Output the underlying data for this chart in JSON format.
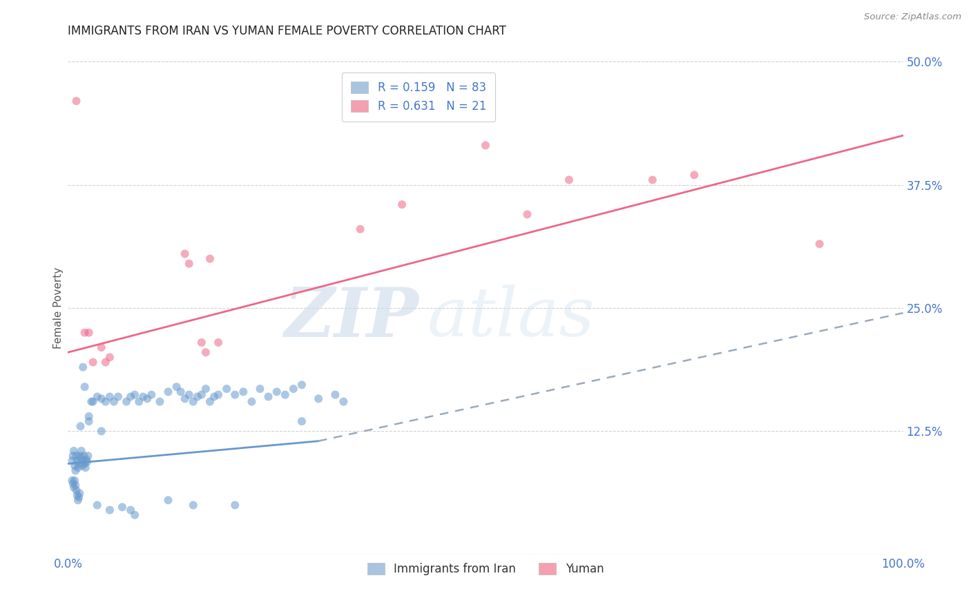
{
  "title": "IMMIGRANTS FROM IRAN VS YUMAN FEMALE POVERTY CORRELATION CHART",
  "source": "Source: ZipAtlas.com",
  "ylabel": "Female Poverty",
  "xlim": [
    0,
    1.0
  ],
  "ylim": [
    0,
    0.5
  ],
  "xticks": [
    0.0,
    0.5,
    1.0
  ],
  "xticklabels": [
    "0.0%",
    "",
    "100.0%"
  ],
  "yticks": [
    0.0,
    0.125,
    0.25,
    0.375,
    0.5
  ],
  "yticklabels": [
    "",
    "12.5%",
    "25.0%",
    "37.5%",
    "50.0%"
  ],
  "blue_scatter": [
    [
      0.005,
      0.095
    ],
    [
      0.006,
      0.1
    ],
    [
      0.007,
      0.105
    ],
    [
      0.008,
      0.09
    ],
    [
      0.009,
      0.085
    ],
    [
      0.01,
      0.1
    ],
    [
      0.011,
      0.095
    ],
    [
      0.012,
      0.088
    ],
    [
      0.013,
      0.092
    ],
    [
      0.014,
      0.1
    ],
    [
      0.015,
      0.098
    ],
    [
      0.016,
      0.105
    ],
    [
      0.017,
      0.09
    ],
    [
      0.018,
      0.095
    ],
    [
      0.019,
      0.1
    ],
    [
      0.02,
      0.092
    ],
    [
      0.021,
      0.088
    ],
    [
      0.022,
      0.096
    ],
    [
      0.023,
      0.094
    ],
    [
      0.024,
      0.1
    ],
    [
      0.005,
      0.075
    ],
    [
      0.006,
      0.072
    ],
    [
      0.007,
      0.068
    ],
    [
      0.008,
      0.075
    ],
    [
      0.009,
      0.07
    ],
    [
      0.01,
      0.065
    ],
    [
      0.011,
      0.06
    ],
    [
      0.012,
      0.055
    ],
    [
      0.013,
      0.058
    ],
    [
      0.014,
      0.062
    ],
    [
      0.015,
      0.13
    ],
    [
      0.018,
      0.19
    ],
    [
      0.02,
      0.17
    ],
    [
      0.025,
      0.14
    ],
    [
      0.028,
      0.155
    ],
    [
      0.03,
      0.155
    ],
    [
      0.035,
      0.16
    ],
    [
      0.04,
      0.158
    ],
    [
      0.045,
      0.155
    ],
    [
      0.05,
      0.16
    ],
    [
      0.055,
      0.155
    ],
    [
      0.06,
      0.16
    ],
    [
      0.07,
      0.155
    ],
    [
      0.075,
      0.16
    ],
    [
      0.08,
      0.162
    ],
    [
      0.085,
      0.155
    ],
    [
      0.09,
      0.16
    ],
    [
      0.095,
      0.158
    ],
    [
      0.1,
      0.162
    ],
    [
      0.11,
      0.155
    ],
    [
      0.12,
      0.165
    ],
    [
      0.13,
      0.17
    ],
    [
      0.135,
      0.165
    ],
    [
      0.14,
      0.158
    ],
    [
      0.145,
      0.162
    ],
    [
      0.15,
      0.155
    ],
    [
      0.155,
      0.16
    ],
    [
      0.16,
      0.162
    ],
    [
      0.165,
      0.168
    ],
    [
      0.17,
      0.155
    ],
    [
      0.175,
      0.16
    ],
    [
      0.18,
      0.162
    ],
    [
      0.19,
      0.168
    ],
    [
      0.2,
      0.162
    ],
    [
      0.21,
      0.165
    ],
    [
      0.22,
      0.155
    ],
    [
      0.23,
      0.168
    ],
    [
      0.24,
      0.16
    ],
    [
      0.25,
      0.165
    ],
    [
      0.26,
      0.162
    ],
    [
      0.27,
      0.168
    ],
    [
      0.28,
      0.172
    ],
    [
      0.3,
      0.158
    ],
    [
      0.32,
      0.162
    ],
    [
      0.025,
      0.135
    ],
    [
      0.04,
      0.125
    ],
    [
      0.035,
      0.05
    ],
    [
      0.05,
      0.045
    ],
    [
      0.065,
      0.048
    ],
    [
      0.075,
      0.045
    ],
    [
      0.08,
      0.04
    ],
    [
      0.12,
      0.055
    ],
    [
      0.15,
      0.05
    ],
    [
      0.2,
      0.05
    ],
    [
      0.28,
      0.135
    ],
    [
      0.33,
      0.155
    ]
  ],
  "pink_scatter": [
    [
      0.01,
      0.46
    ],
    [
      0.02,
      0.225
    ],
    [
      0.025,
      0.225
    ],
    [
      0.03,
      0.195
    ],
    [
      0.04,
      0.21
    ],
    [
      0.045,
      0.195
    ],
    [
      0.05,
      0.2
    ],
    [
      0.14,
      0.305
    ],
    [
      0.145,
      0.295
    ],
    [
      0.16,
      0.215
    ],
    [
      0.165,
      0.205
    ],
    [
      0.17,
      0.3
    ],
    [
      0.18,
      0.215
    ],
    [
      0.35,
      0.33
    ],
    [
      0.4,
      0.355
    ],
    [
      0.5,
      0.415
    ],
    [
      0.55,
      0.345
    ],
    [
      0.6,
      0.38
    ],
    [
      0.7,
      0.38
    ],
    [
      0.75,
      0.385
    ],
    [
      0.9,
      0.315
    ]
  ],
  "blue_solid_line": [
    [
      0.0,
      0.092
    ],
    [
      0.3,
      0.115
    ]
  ],
  "blue_dashed_line": [
    [
      0.3,
      0.115
    ],
    [
      1.0,
      0.245
    ]
  ],
  "pink_line": [
    [
      0.0,
      0.205
    ],
    [
      1.0,
      0.425
    ]
  ],
  "watermark_zip": "ZIP",
  "watermark_atlas": "atlas",
  "scatter_alpha": 0.55,
  "scatter_size": 75,
  "background_color": "#ffffff",
  "grid_color": "#cccccc",
  "title_color": "#222222",
  "axis_label_color": "#4477cc",
  "blue_color": "#6699cc",
  "pink_color": "#ee6688",
  "blue_dashed_color": "#99aabb"
}
